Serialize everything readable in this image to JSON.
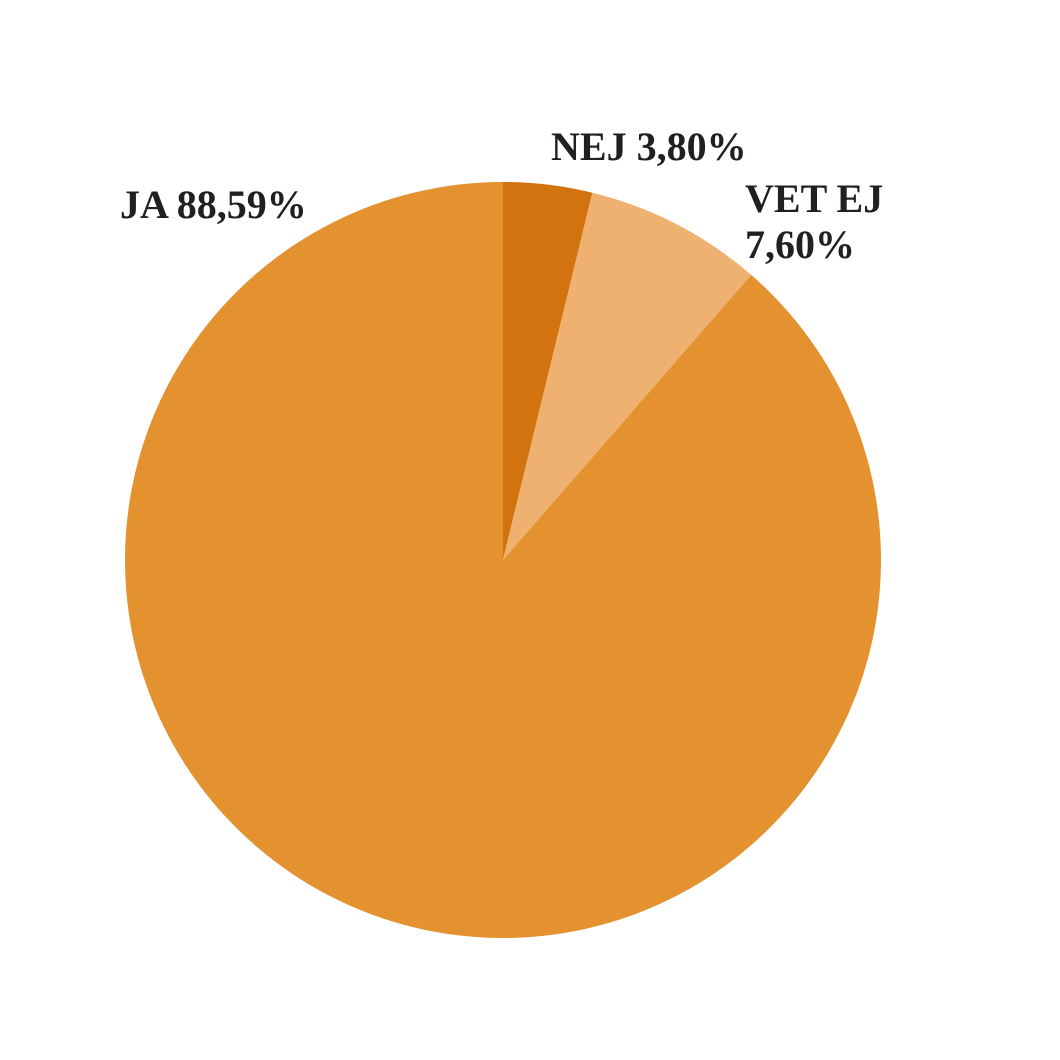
{
  "chart_data": {
    "type": "pie",
    "categories": [
      "NEJ",
      "VET EJ",
      "JA"
    ],
    "values": [
      3.8,
      7.6,
      88.59
    ],
    "value_labels": [
      "3,80%",
      "7,60%",
      "88,59%"
    ],
    "colors": [
      "#d2730f",
      "#efb16f",
      "#e4912f"
    ]
  }
}
